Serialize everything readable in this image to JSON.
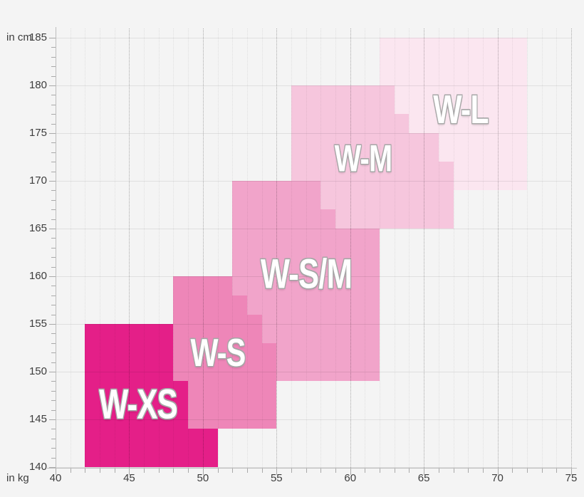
{
  "page": {
    "background": "#f4f4f4"
  },
  "chart_data": {
    "type": "area",
    "description": "Women's clothing size chart: stepped colored regions of body weight (kg) vs body height (cm)",
    "x_axis": {
      "unit_label": "in kg",
      "min": 40,
      "max": 75,
      "major_ticks": [
        40,
        45,
        50,
        55,
        60,
        65,
        70,
        75
      ],
      "minor_step": 1,
      "grid": true
    },
    "y_axis": {
      "unit_label": "in cm",
      "min": 140,
      "max": 185,
      "major_ticks": [
        140,
        145,
        150,
        155,
        160,
        165,
        170,
        175,
        180,
        185
      ],
      "minor_step": 1,
      "grid": true
    },
    "sizes": [
      {
        "label": "W-L",
        "color": "#fbe6f0",
        "kg_range": [
          62,
          72
        ],
        "cm_range": [
          169,
          185
        ],
        "label_at": [
          67.5,
          177.5
        ],
        "label_font_px": 57,
        "rects_kg_cm": [
          [
            62,
            169,
            72,
            185
          ]
        ]
      },
      {
        "label": "W-M",
        "color": "#f6c6dd",
        "kg_range": [
          56,
          67
        ],
        "cm_range": [
          165,
          180
        ],
        "label_at": [
          60.9,
          172.3
        ],
        "label_font_px": 53,
        "rects_kg_cm": [
          [
            56,
            177,
            63,
            180
          ],
          [
            56,
            175,
            64,
            177
          ],
          [
            56,
            172,
            66,
            175
          ],
          [
            56,
            165,
            67,
            172
          ]
        ]
      },
      {
        "label": "W-S/M",
        "color": "#f1a4ca",
        "kg_range": [
          52,
          62
        ],
        "cm_range": [
          149,
          170
        ],
        "label_at": [
          57,
          160.2
        ],
        "label_font_px": 58,
        "rects_kg_cm": [
          [
            52,
            167,
            58,
            170
          ],
          [
            52,
            165,
            59,
            167
          ],
          [
            52,
            149,
            62,
            165
          ]
        ]
      },
      {
        "label": "W-S",
        "color": "#ee86b8",
        "kg_range": [
          48,
          55
        ],
        "cm_range": [
          144,
          160
        ],
        "label_at": [
          51,
          152
        ],
        "label_font_px": 55,
        "rects_kg_cm": [
          [
            48,
            158,
            52,
            160
          ],
          [
            48,
            156,
            53,
            158
          ],
          [
            48,
            153,
            54,
            156
          ],
          [
            48,
            144,
            55,
            153
          ]
        ]
      },
      {
        "label": "W-XS",
        "color": "#e41f88",
        "kg_range": [
          42,
          51
        ],
        "cm_range": [
          140,
          155
        ],
        "label_at": [
          45.6,
          146.6
        ],
        "label_font_px": 58,
        "rects_kg_cm": [
          [
            42,
            149,
            48,
            155
          ],
          [
            42,
            144,
            49,
            149
          ],
          [
            42,
            140,
            51,
            144
          ]
        ]
      }
    ]
  }
}
